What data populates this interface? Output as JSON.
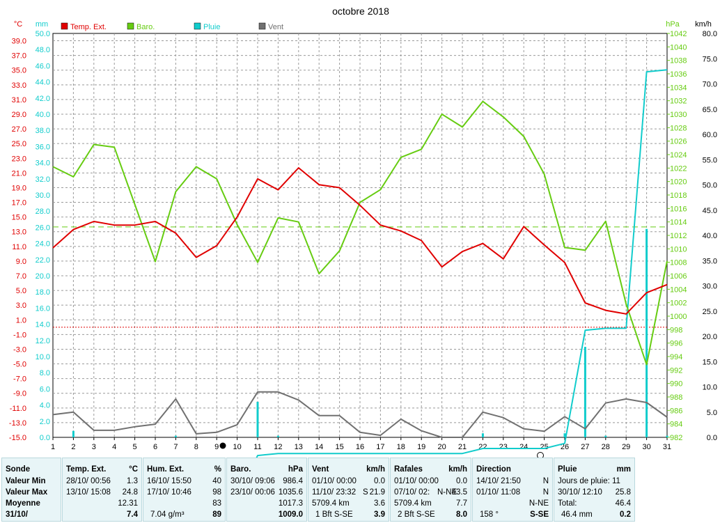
{
  "colors": {
    "temp": "#e00000",
    "baro": "#66cc11",
    "rain": "#11cccc",
    "wind": "#707070",
    "left_axis": "#e00000",
    "baro_axis": "#66cc11",
    "rain_axis": "#11cccc",
    "wind_axis": "#000000",
    "grid": "#999999",
    "panel_bg": "#e8f5f7"
  },
  "chart_data": {
    "type": "line",
    "title": "octobre 2018",
    "xlim": [
      1,
      31
    ],
    "x_ticks": [
      "1",
      "2",
      "3",
      "4",
      "5",
      "6",
      "7",
      "8",
      "9",
      "10",
      "11",
      "12",
      "13",
      "14",
      "15",
      "16",
      "17",
      "18",
      "19",
      "20",
      "21",
      "22",
      "23",
      "24",
      "25",
      "26",
      "27",
      "28",
      "29",
      "30",
      "31"
    ],
    "axes": {
      "temp": {
        "unit": "°C",
        "ylim": [
          -15,
          40
        ],
        "ticks": [
          "39.0",
          "37.0",
          "35.0",
          "33.0",
          "31.0",
          "29.0",
          "27.0",
          "25.0",
          "23.0",
          "21.0",
          "19.0",
          "17.0",
          "15.0",
          "13.0",
          "11.0",
          "9.0",
          "7.0",
          "5.0",
          "3.0",
          "1.0",
          "-1.0",
          "-3.0",
          "-5.0",
          "-7.0",
          "-9.0",
          "-11.0",
          "-13.0",
          "-15.0"
        ]
      },
      "rain": {
        "unit": "mm",
        "ylim": [
          10,
          50
        ],
        "ticks": [
          "50.0",
          "48.0",
          "46.0",
          "44.0",
          "42.0",
          "40.0",
          "38.0",
          "36.0",
          "34.0",
          "32.0",
          "30.0",
          "28.0",
          "26.0",
          "24.0",
          "22.0",
          "20.0",
          "18.0",
          "16.0",
          "14.0",
          "12.0",
          "10.0",
          "8.0",
          "6.0",
          "4.0",
          "2.0",
          "0.0"
        ]
      },
      "baro": {
        "unit": "hPa",
        "ylim": [
          982,
          1042
        ],
        "ticks": [
          "1042",
          "1040",
          "1038",
          "1036",
          "1034",
          "1032",
          "1030",
          "1028",
          "1026",
          "1024",
          "1022",
          "1020",
          "1018",
          "1016",
          "1014",
          "1012",
          "1010",
          "1008",
          "1006",
          "1004",
          "1002",
          "1000",
          "998",
          "996",
          "994",
          "992",
          "990",
          "988",
          "986",
          "984",
          "982"
        ]
      },
      "wind": {
        "unit": "km/h",
        "ylim": [
          0,
          80
        ],
        "ticks": [
          "80.0",
          "75.0",
          "70.0",
          "65.0",
          "60.0",
          "55.0",
          "50.0",
          "45.0",
          "40.0",
          "35.0",
          "30.0",
          "25.0",
          "20.0",
          "15.0",
          "10.0",
          "5.0",
          "0.0"
        ]
      }
    },
    "reference_lines": [
      {
        "axis": "baro",
        "value": 1013.25,
        "color": "#66cc11",
        "style": "dashed"
      },
      {
        "axis": "temp",
        "value": 0,
        "color": "#e00000",
        "style": "dotted"
      }
    ],
    "series": [
      {
        "name": "Temp. Ext.",
        "axis": "temp",
        "color": "#e00000",
        "x": [
          1,
          2,
          3,
          4,
          5,
          6,
          7,
          8,
          9,
          10,
          11,
          12,
          13,
          14,
          15,
          16,
          17,
          18,
          19,
          20,
          21,
          22,
          23,
          24,
          25,
          26,
          27,
          28,
          29,
          30,
          31
        ],
        "values": [
          10.8,
          13.3,
          14.4,
          13.9,
          13.9,
          14.4,
          12.8,
          9.5,
          11.1,
          15.0,
          20.2,
          18.7,
          21.7,
          19.4,
          19.0,
          16.6,
          13.9,
          13.1,
          11.8,
          8.2,
          10.3,
          11.4,
          9.3,
          13.7,
          11.2,
          8.8,
          3.3,
          2.3,
          1.8,
          4.7,
          5.8
        ]
      },
      {
        "name": "Baro.",
        "axis": "baro",
        "color": "#66cc11",
        "x": [
          1,
          2,
          3,
          4,
          5,
          6,
          7,
          8,
          9,
          10,
          11,
          12,
          13,
          14,
          15,
          16,
          17,
          18,
          19,
          20,
          21,
          22,
          23,
          24,
          25,
          26,
          27,
          28,
          29,
          30,
          31
        ],
        "values": [
          1022.2,
          1020.7,
          1025.5,
          1025.1,
          1016.6,
          1008.1,
          1018.5,
          1022.2,
          1020.4,
          1013.6,
          1008.0,
          1014.6,
          1014.0,
          1006.3,
          1009.7,
          1016.9,
          1018.8,
          1023.6,
          1024.8,
          1030.0,
          1028.1,
          1031.9,
          1029.6,
          1026.7,
          1021.1,
          1010.2,
          1009.8,
          1014.1,
          1001.8,
          992.8,
          1008.2
        ]
      },
      {
        "name": "Pluie",
        "axis": "rain",
        "color": "#11cccc",
        "x": [
          1,
          2,
          3,
          4,
          5,
          6,
          7,
          8,
          9,
          10,
          11,
          12,
          13,
          14,
          15,
          16,
          17,
          18,
          19,
          20,
          21,
          22,
          23,
          24,
          25,
          26,
          27,
          28,
          29,
          30,
          31
        ],
        "values": [
          2.8,
          3.6,
          3.6,
          3.6,
          3.6,
          3.6,
          3.6,
          3.8,
          3.8,
          3.8,
          8.2,
          8.4,
          8.4,
          8.4,
          8.4,
          8.4,
          8.4,
          8.4,
          8.4,
          8.4,
          8.4,
          8.9,
          8.9,
          8.9,
          8.9,
          9.4,
          20.6,
          20.8,
          20.8,
          46.2,
          46.4
        ],
        "daily_bars": [
          0,
          0.8,
          0,
          0,
          0,
          0,
          0.2,
          0,
          0,
          0,
          4.4,
          0.2,
          0,
          0,
          0,
          0,
          0,
          0,
          0,
          0,
          0,
          0.5,
          0,
          0,
          0,
          0.5,
          11.2,
          0.2,
          0,
          25.8,
          0.2
        ]
      },
      {
        "name": "Vent",
        "axis": "wind",
        "color": "#707070",
        "x": [
          1,
          2,
          3,
          4,
          5,
          6,
          7,
          8,
          9,
          10,
          11,
          12,
          13,
          14,
          15,
          16,
          17,
          18,
          19,
          20,
          21,
          22,
          23,
          24,
          25,
          26,
          27,
          28,
          29,
          30,
          31
        ],
        "values": [
          4.5,
          5.0,
          1.4,
          1.4,
          2.1,
          2.6,
          7.6,
          0.7,
          1.0,
          2.5,
          9.0,
          9.0,
          7.4,
          4.3,
          4.3,
          1.0,
          0.4,
          3.6,
          1.3,
          0,
          0,
          5.0,
          3.9,
          1.7,
          1.2,
          4.1,
          1.7,
          6.8,
          7.6,
          6.9,
          4.0
        ]
      }
    ],
    "legend": [
      "Temp. Ext.",
      "Baro.",
      "Pluie",
      "Vent"
    ],
    "legend_position": "top-left",
    "grid": true
  },
  "summary": {
    "row_labels": [
      "Sonde",
      "Valeur Min",
      "Valeur Max",
      "Moyenne",
      "31/10/"
    ],
    "temp": {
      "title": "Temp. Ext.",
      "unit": "°C",
      "min_time": "28/10/  00:56",
      "min": "1.3",
      "max_time": "13/10/  15:08",
      "max": "24.8",
      "avg": "12.31",
      "current": "7.4"
    },
    "hum": {
      "title": "Hum. Ext.",
      "unit": "%",
      "min_time": "16/10/  15:50",
      "min": "40",
      "max_time": "17/10/  10:46",
      "max": "98",
      "avg": "83",
      "current_note": "7.04 g/m³",
      "current": "89"
    },
    "baro": {
      "title": "Baro.",
      "unit": "hPa",
      "min_time": "30/10/  09:06",
      "min": "986.4",
      "max_time": "23/10/  00:06",
      "max": "1035.6",
      "avg": "1017.3",
      "current": "1009.0"
    },
    "wind": {
      "title": "Vent",
      "unit": "km/h",
      "min_time": "01/10/  00:00",
      "min": "0.0",
      "max_time": "11/10/  23:32",
      "max_dir": "S",
      "max": "21.9",
      "avg_note": "5709.4 km",
      "avg": "3.6",
      "current_note": "1 Bft S-SE",
      "current": "3.9"
    },
    "gust": {
      "title": "Rafales",
      "unit": "km/h",
      "min_time": "01/10/  00:00",
      "min": "0.0",
      "max_time": "07/10/  02:",
      "max_dir": "N-NE",
      "max": "43.5",
      "avg_note": "5709.4 km",
      "avg": "7.7",
      "current_note": "2 Bft S-SE",
      "current": "8.0"
    },
    "dir": {
      "title": "Direction",
      "min_time": "14/10/  21:50",
      "min": "N",
      "max_time": "01/10/  11:08",
      "max": "N",
      "avg": "N-NE",
      "current_note": "158 °",
      "current": "S-SE"
    },
    "rain": {
      "title": "Pluie",
      "unit": "mm",
      "days_label": "Jours de pluie: 11",
      "max_time": "30/10/  12:10",
      "max": "25.8",
      "total_label": "Total:",
      "total": "46.4",
      "current_note": "46.4 mm",
      "current": "0.2"
    }
  }
}
